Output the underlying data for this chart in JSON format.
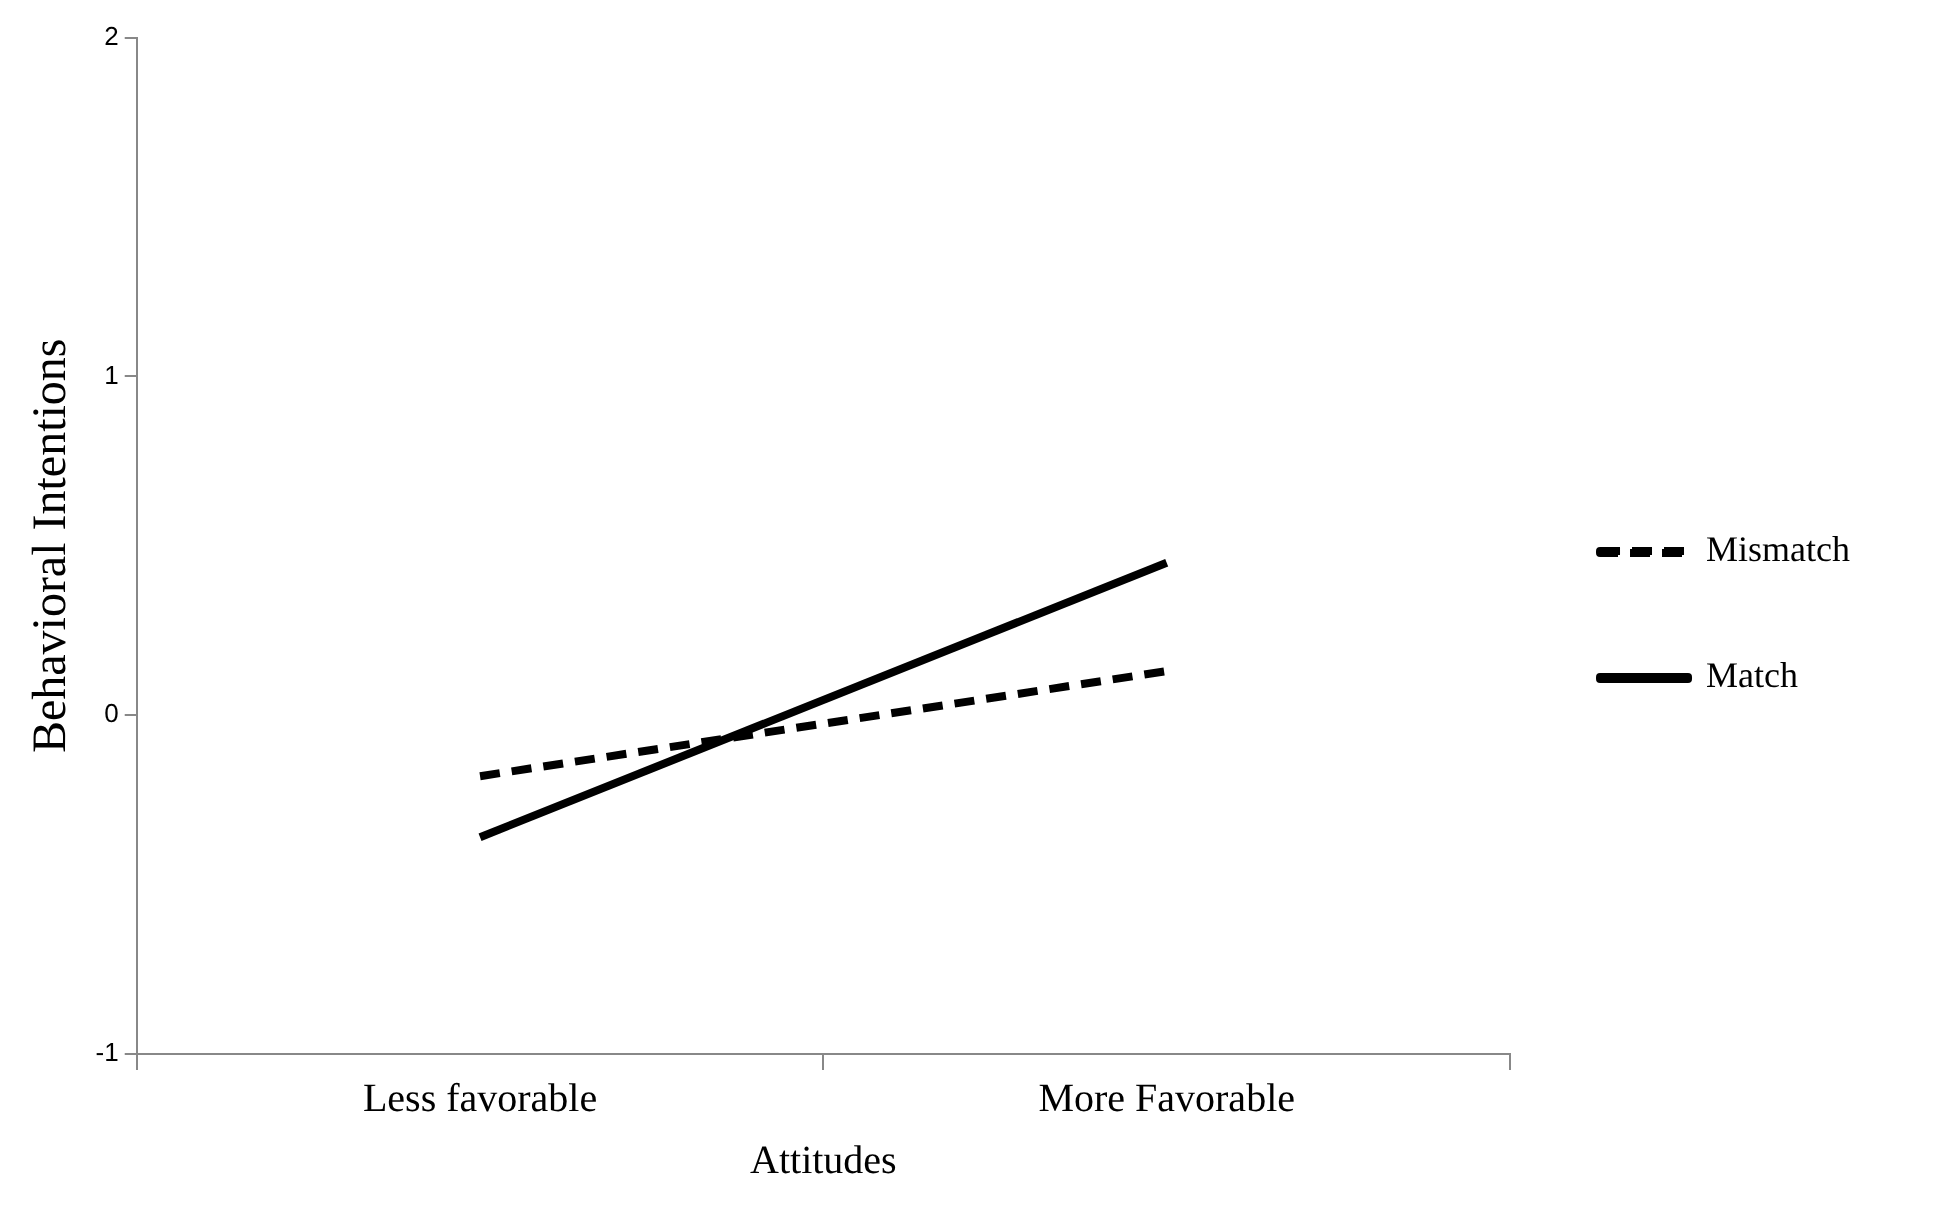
{
  "chart_data": {
    "type": "line",
    "xlabel": "Attitudes",
    "ylabel": "Behavioral Intentions",
    "categories": [
      "Less favorable",
      "More Favorable"
    ],
    "series": [
      {
        "name": "Mismatch",
        "color": "#000000",
        "values": [
          -0.18,
          0.13
        ],
        "line_style": "dashed"
      },
      {
        "name": "Match",
        "color": "#000000",
        "values": [
          -0.36,
          0.45
        ],
        "line_style": "solid"
      }
    ],
    "ylim": [
      -1,
      2
    ],
    "yticks": [
      -1,
      0,
      1,
      2
    ],
    "grid": false,
    "legend": "right",
    "marker": "none"
  }
}
